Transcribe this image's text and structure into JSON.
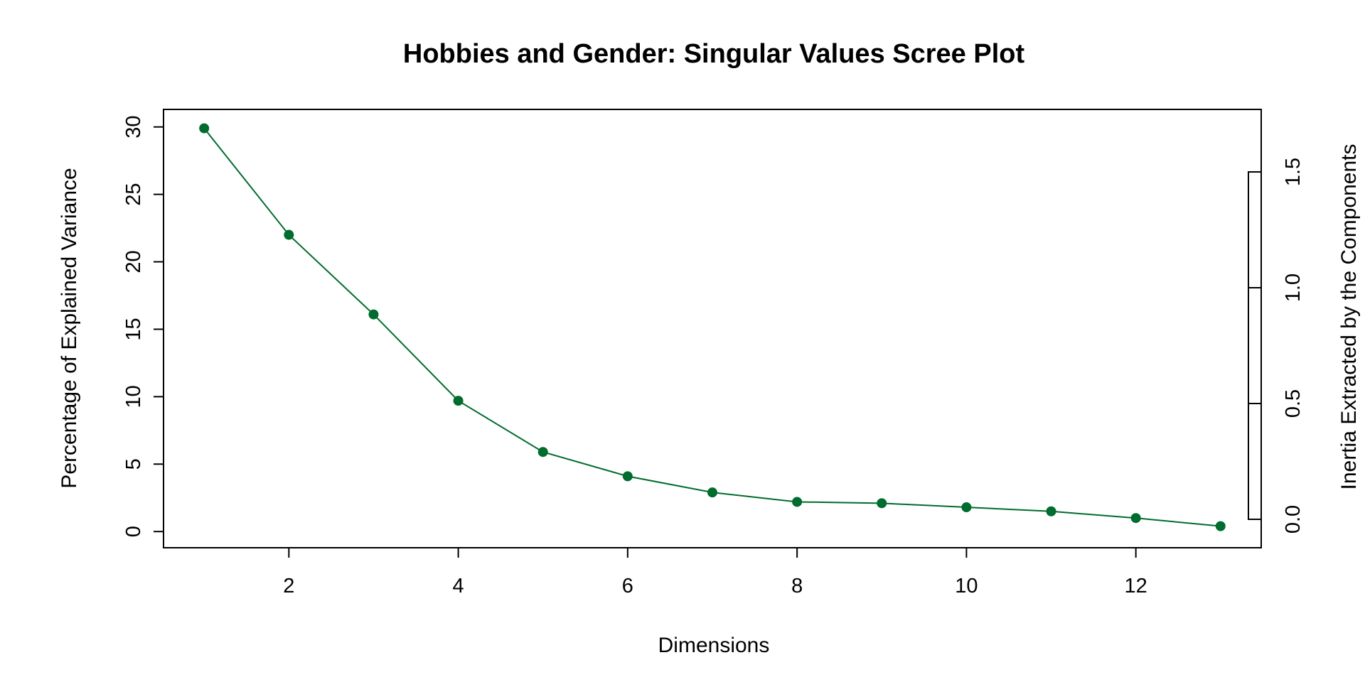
{
  "chart_data": {
    "type": "line",
    "title": "Hobbies and Gender: Singular Values Scree Plot",
    "xlabel": "Dimensions",
    "ylabel": "Percentage of Explained Variance",
    "y2label": "Inertia Extracted by the Components",
    "x": [
      1,
      2,
      3,
      4,
      5,
      6,
      7,
      8,
      9,
      10,
      11,
      12,
      13
    ],
    "series": [
      {
        "values": [
          29.9,
          22.0,
          16.1,
          9.7,
          5.9,
          4.1,
          2.9,
          2.2,
          2.1,
          1.8,
          1.5,
          1.0,
          0.4
        ],
        "color": "#006c2e"
      }
    ],
    "xlim": [
      0.52,
      13.48
    ],
    "ylim": [
      -1.2,
      31.3
    ],
    "xticks": [
      "2",
      "4",
      "6",
      "8",
      "10",
      "12"
    ],
    "yticks": [
      "0",
      "5",
      "10",
      "15",
      "20",
      "25",
      "30"
    ],
    "y2ticks": [
      "0.0",
      "0.5",
      "1.0",
      "1.5"
    ],
    "y2_axis_range": [
      0.0,
      1.5
    ],
    "y2_segments": [
      0.5,
      1.0,
      1.5
    ],
    "grid": false,
    "legend": "none",
    "point_marker": "filled-circle"
  }
}
